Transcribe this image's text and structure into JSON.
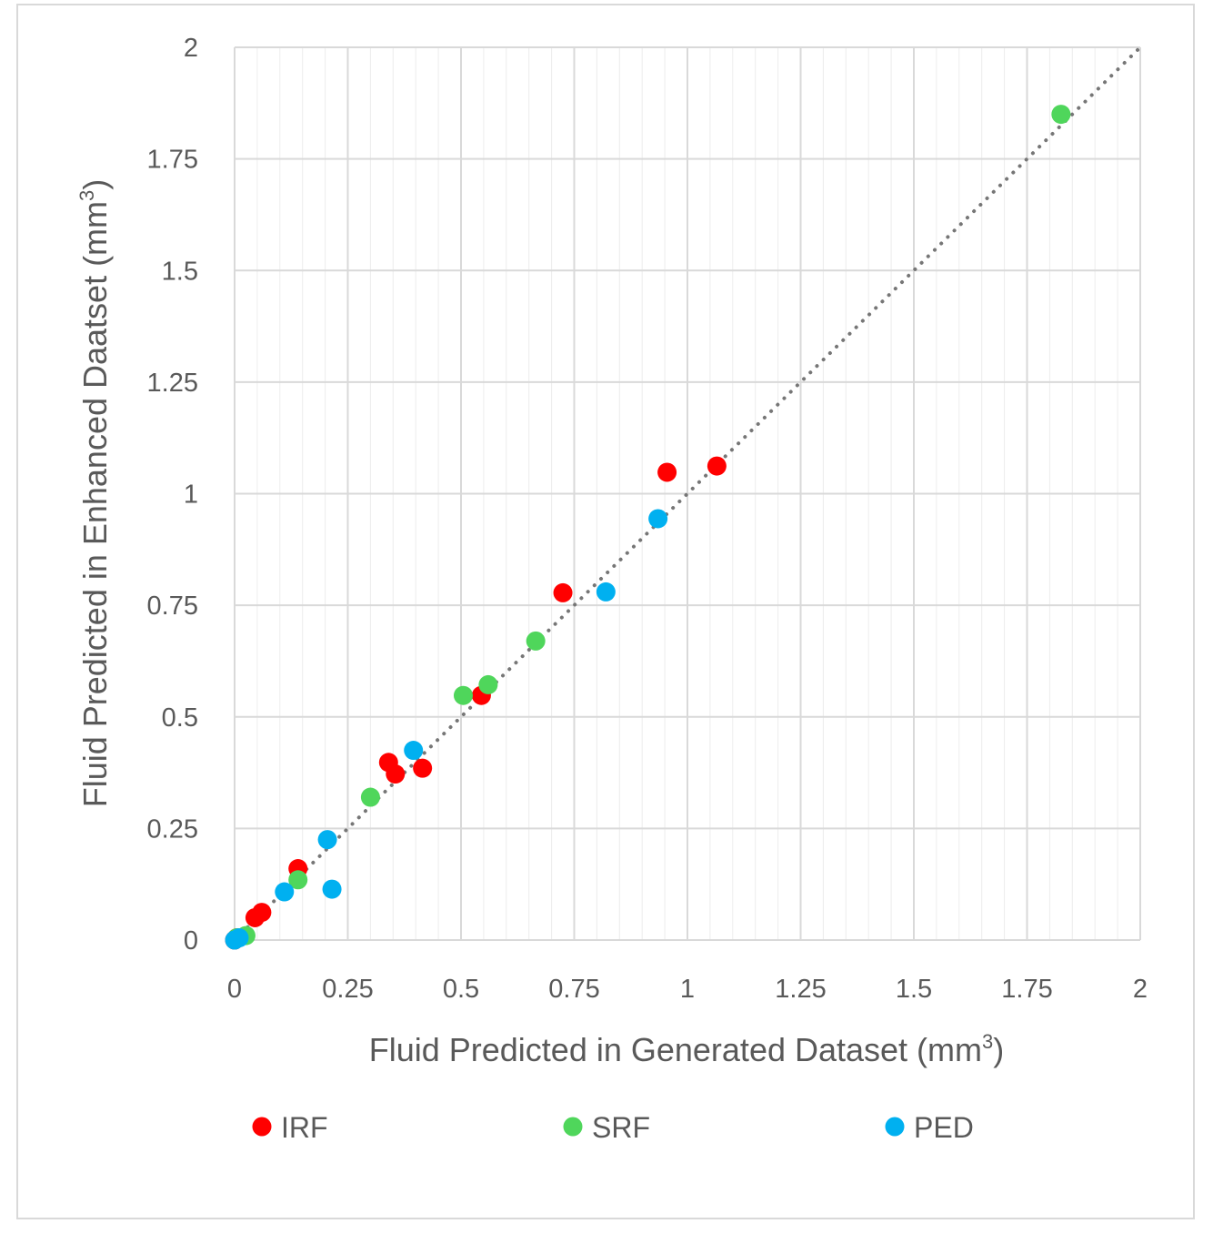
{
  "chart_data": {
    "type": "scatter",
    "title": "",
    "xlabel": "Fluid Predicted in Generated Dataset (mm",
    "ylabel": "Fluid Predicted in Enhanced Daatset (mm",
    "unit_superscript": "3",
    "xlabel_close": ")",
    "ylabel_close": ")",
    "xlim": [
      0,
      2
    ],
    "ylim": [
      0,
      2
    ],
    "x_ticks": [
      "0",
      "0.25",
      "0.5",
      "0.75",
      "1",
      "1.25",
      "1.5",
      "1.75",
      "2"
    ],
    "y_ticks": [
      "0",
      "0.25",
      "0.5",
      "0.75",
      "1",
      "1.25",
      "1.5",
      "1.75",
      "2"
    ],
    "grid": true,
    "legend_position": "bottom",
    "trendline": {
      "style": "dotted",
      "color": "#767676",
      "from": [
        0,
        0
      ],
      "to": [
        2,
        2
      ]
    },
    "series": [
      {
        "name": "IRF",
        "color": "#ff0000",
        "points": [
          [
            0.0,
            0.0
          ],
          [
            0.005,
            0.005
          ],
          [
            0.045,
            0.05
          ],
          [
            0.06,
            0.062
          ],
          [
            0.14,
            0.16
          ],
          [
            0.34,
            0.398
          ],
          [
            0.355,
            0.372
          ],
          [
            0.415,
            0.385
          ],
          [
            0.545,
            0.548
          ],
          [
            0.725,
            0.778
          ],
          [
            0.955,
            1.048
          ],
          [
            1.065,
            1.062
          ]
        ]
      },
      {
        "name": "SRF",
        "color": "#4fd65b",
        "points": [
          [
            0.005,
            0.005
          ],
          [
            0.025,
            0.01
          ],
          [
            0.14,
            0.135
          ],
          [
            0.3,
            0.32
          ],
          [
            0.505,
            0.548
          ],
          [
            0.56,
            0.572
          ],
          [
            0.665,
            0.67
          ],
          [
            1.825,
            1.85
          ]
        ]
      },
      {
        "name": "PED",
        "color": "#00b0f0",
        "points": [
          [
            0.0,
            0.0
          ],
          [
            0.01,
            0.005
          ],
          [
            0.11,
            0.108
          ],
          [
            0.205,
            0.225
          ],
          [
            0.215,
            0.114
          ],
          [
            0.395,
            0.425
          ],
          [
            0.82,
            0.78
          ],
          [
            0.935,
            0.944
          ]
        ]
      }
    ]
  }
}
